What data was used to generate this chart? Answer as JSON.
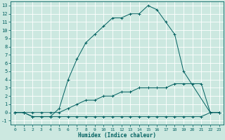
{
  "xlabel": "Humidex (Indice chaleur)",
  "bg_color": "#cce8e0",
  "grid_color": "#ffffff",
  "line_color": "#006060",
  "xlim": [
    -0.5,
    23.5
  ],
  "ylim": [
    -1.5,
    13.5
  ],
  "xticks": [
    0,
    1,
    2,
    3,
    4,
    5,
    6,
    7,
    8,
    9,
    10,
    11,
    12,
    13,
    14,
    15,
    16,
    17,
    18,
    19,
    20,
    21,
    22,
    23
  ],
  "yticks": [
    -1,
    0,
    1,
    2,
    3,
    4,
    5,
    6,
    7,
    8,
    9,
    10,
    11,
    12,
    13
  ],
  "series": [
    {
      "x": [
        0,
        1,
        2,
        3,
        4,
        5,
        6,
        7,
        8,
        9,
        10,
        11,
        12,
        13,
        14,
        15,
        16,
        17,
        18,
        19,
        22,
        23
      ],
      "y": [
        0,
        0,
        -0.5,
        -0.5,
        -0.5,
        0.5,
        4.0,
        6.5,
        8.5,
        9.5,
        10.5,
        11.5,
        11.5,
        12.0,
        12.0,
        13.0,
        12.5,
        11.0,
        9.5,
        5.0,
        0,
        0
      ]
    },
    {
      "x": [
        0,
        1,
        2,
        3,
        4,
        5,
        6,
        7,
        8,
        9,
        10,
        11,
        12,
        13,
        14,
        15,
        16,
        17,
        18,
        19,
        20,
        21,
        22,
        23
      ],
      "y": [
        0,
        0,
        0,
        0,
        0,
        0,
        0.5,
        1.0,
        1.5,
        1.5,
        2.0,
        2.0,
        2.5,
        2.5,
        3.0,
        3.0,
        3.0,
        3.0,
        3.5,
        3.5,
        3.5,
        3.5,
        0.0,
        0.0
      ]
    },
    {
      "x": [
        0,
        1,
        2,
        3,
        4,
        5,
        6,
        7,
        8,
        9,
        10,
        11,
        12,
        13,
        14,
        15,
        16,
        17,
        18,
        19,
        20,
        21,
        22,
        23
      ],
      "y": [
        0,
        0,
        -0.5,
        -0.5,
        -0.5,
        -0.5,
        -0.5,
        -0.5,
        -0.5,
        -0.5,
        -0.5,
        -0.5,
        -0.5,
        -0.5,
        -0.5,
        -0.5,
        -0.5,
        -0.5,
        -0.5,
        -0.5,
        -0.5,
        -0.5,
        0.0,
        0.0
      ]
    }
  ]
}
